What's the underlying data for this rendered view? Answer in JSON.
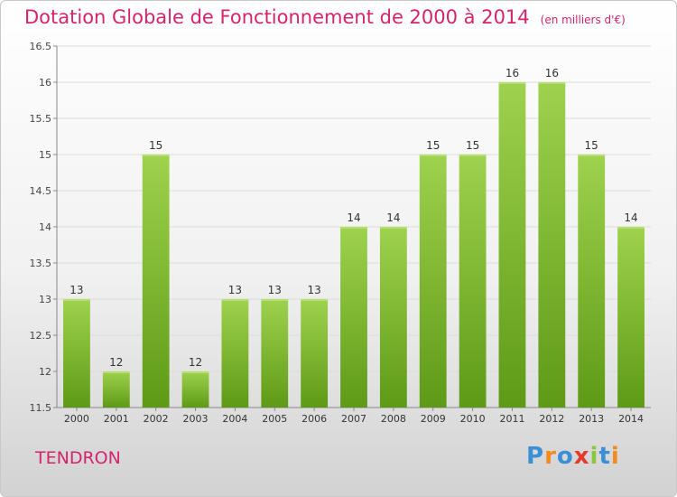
{
  "header": {
    "title": "Dotation Globale de Fonctionnement de 2000 à 2014",
    "subtitle": "(en milliers d'€)"
  },
  "footer": {
    "city": "TENDRON",
    "logo_text": "Proxiti",
    "logo_colors": [
      "#3a8fd6",
      "#f28a1e",
      "#3a8fd6",
      "#e63a2e",
      "#8cc63f",
      "#3a8fd6",
      "#f28a1e"
    ]
  },
  "chart_data": {
    "type": "bar",
    "title": "Dotation Globale de Fonctionnement de 2000 à 2014",
    "categories": [
      "2000",
      "2001",
      "2002",
      "2003",
      "2004",
      "2005",
      "2006",
      "2007",
      "2008",
      "2009",
      "2010",
      "2011",
      "2012",
      "2013",
      "2014"
    ],
    "values": [
      13,
      12,
      15,
      12,
      13,
      13,
      13,
      14,
      14,
      15,
      15,
      16,
      16,
      15,
      14
    ],
    "data_labels": [
      "13",
      "12",
      "15",
      "12",
      "13",
      "13",
      "13",
      "14",
      "14",
      "15",
      "15",
      "16",
      "16",
      "15",
      "14"
    ],
    "ylim": [
      11.5,
      16.5
    ],
    "yticks": [
      11.5,
      12,
      12.5,
      13,
      13.5,
      14,
      14.5,
      15,
      15.5,
      16,
      16.5
    ],
    "ytick_labels": [
      "11.5",
      "12",
      "12.5",
      "13",
      "13.5",
      "14",
      "14.5",
      "15",
      "15.5",
      "16",
      "16.5"
    ],
    "xlabel": "",
    "ylabel": "",
    "grid": true,
    "bar_color_top": "#9fd24e",
    "bar_color_bottom": "#5e9a16"
  }
}
